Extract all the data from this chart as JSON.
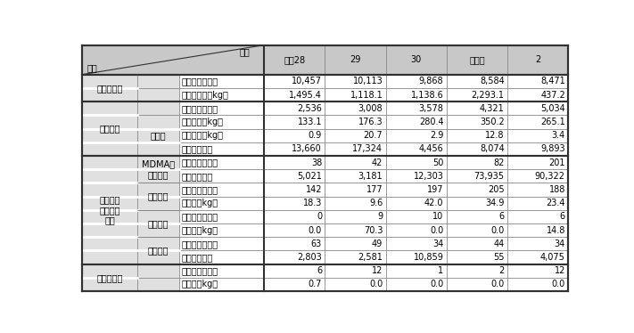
{
  "col_headers": [
    "平成28",
    "29",
    "30",
    "令和元",
    "2"
  ],
  "rows": [
    {
      "cat1": "覚醒剤事犯",
      "cat2": "",
      "cat3": "検挙人員（人）",
      "values": [
        "10,457",
        "10,113",
        "9,868",
        "8,584",
        "8,471"
      ],
      "cat1_span": 2,
      "cat2_span": 0
    },
    {
      "cat1": "",
      "cat2": "",
      "cat3": "粉末押収量（kg）",
      "values": [
        "1,495.4",
        "1,118.1",
        "1,138.6",
        "2,293.1",
        "437.2"
      ],
      "cat1_span": 0,
      "cat2_span": 0
    },
    {
      "cat1": "大麻事犯",
      "cat2": "",
      "cat3": "検挙人員（人）",
      "values": [
        "2,536",
        "3,008",
        "3,578",
        "4,321",
        "5,034"
      ],
      "cat1_span": 4,
      "cat2_span": 0
    },
    {
      "cat1": "",
      "cat2": "押収量",
      "cat3": "乾燥大麻（kg）",
      "values": [
        "133.1",
        "176.3",
        "280.4",
        "350.2",
        "265.1"
      ],
      "cat1_span": 0,
      "cat2_span": 3
    },
    {
      "cat1": "",
      "cat2": "",
      "cat3": "大麻樹脂（kg）",
      "values": [
        "0.9",
        "20.7",
        "2.9",
        "12.8",
        "3.4"
      ],
      "cat1_span": 0,
      "cat2_span": 0
    },
    {
      "cat1": "",
      "cat2": "",
      "cat3": "大麻草（本）",
      "values": [
        "13,660",
        "17,324",
        "4,456",
        "8,074",
        "9,893"
      ],
      "cat1_span": 0,
      "cat2_span": 0
    },
    {
      "cat1": "麻薬及び\n向精神薬\n事犯",
      "cat2": "MDMA等\n合成麻薬",
      "cat3": "検挙人員（人）",
      "values": [
        "38",
        "42",
        "50",
        "82",
        "201"
      ],
      "cat1_span": 8,
      "cat2_span": 2
    },
    {
      "cat1": "",
      "cat2": "",
      "cat3": "押収量（錠）",
      "values": [
        "5,021",
        "3,181",
        "12,303",
        "73,935",
        "90,322"
      ],
      "cat1_span": 0,
      "cat2_span": 0
    },
    {
      "cat1": "",
      "cat2": "コカイン",
      "cat3": "検挙人員（人）",
      "values": [
        "142",
        "177",
        "197",
        "205",
        "188"
      ],
      "cat1_span": 0,
      "cat2_span": 2
    },
    {
      "cat1": "",
      "cat2": "",
      "cat3": "押収量（kg）",
      "values": [
        "18.3",
        "9.6",
        "42.0",
        "34.9",
        "23.4"
      ],
      "cat1_span": 0,
      "cat2_span": 0
    },
    {
      "cat1": "",
      "cat2": "ヘロイン",
      "cat3": "検挙人員（人）",
      "values": [
        "0",
        "9",
        "10",
        "6",
        "6"
      ],
      "cat1_span": 0,
      "cat2_span": 2
    },
    {
      "cat1": "",
      "cat2": "",
      "cat3": "押収量（kg）",
      "values": [
        "0.0",
        "70.3",
        "0.0",
        "0.0",
        "14.8"
      ],
      "cat1_span": 0,
      "cat2_span": 0
    },
    {
      "cat1": "",
      "cat2": "向精神薬",
      "cat3": "検挙人員（人）",
      "values": [
        "63",
        "49",
        "34",
        "44",
        "34"
      ],
      "cat1_span": 0,
      "cat2_span": 2
    },
    {
      "cat1": "",
      "cat2": "",
      "cat3": "押収量（錠）",
      "values": [
        "2,803",
        "2,581",
        "10,859",
        "55",
        "4,075"
      ],
      "cat1_span": 0,
      "cat2_span": 0
    },
    {
      "cat1": "あへん事犯",
      "cat2": "",
      "cat3": "検挙人員（人）",
      "values": [
        "6",
        "12",
        "1",
        "2",
        "12"
      ],
      "cat1_span": 2,
      "cat2_span": 0
    },
    {
      "cat1": "",
      "cat2": "",
      "cat3": "押収量（kg）",
      "values": [
        "0.7",
        "0.0",
        "0.0",
        "0.0",
        "0.0"
      ],
      "cat1_span": 0,
      "cat2_span": 0
    }
  ],
  "header_bg": "#c8c8c8",
  "row_bg_alt": "#f0f0f0",
  "row_bg_white": "#ffffff",
  "line_color": "#888888",
  "thick_line_color": "#404040",
  "font_size": 7.0
}
